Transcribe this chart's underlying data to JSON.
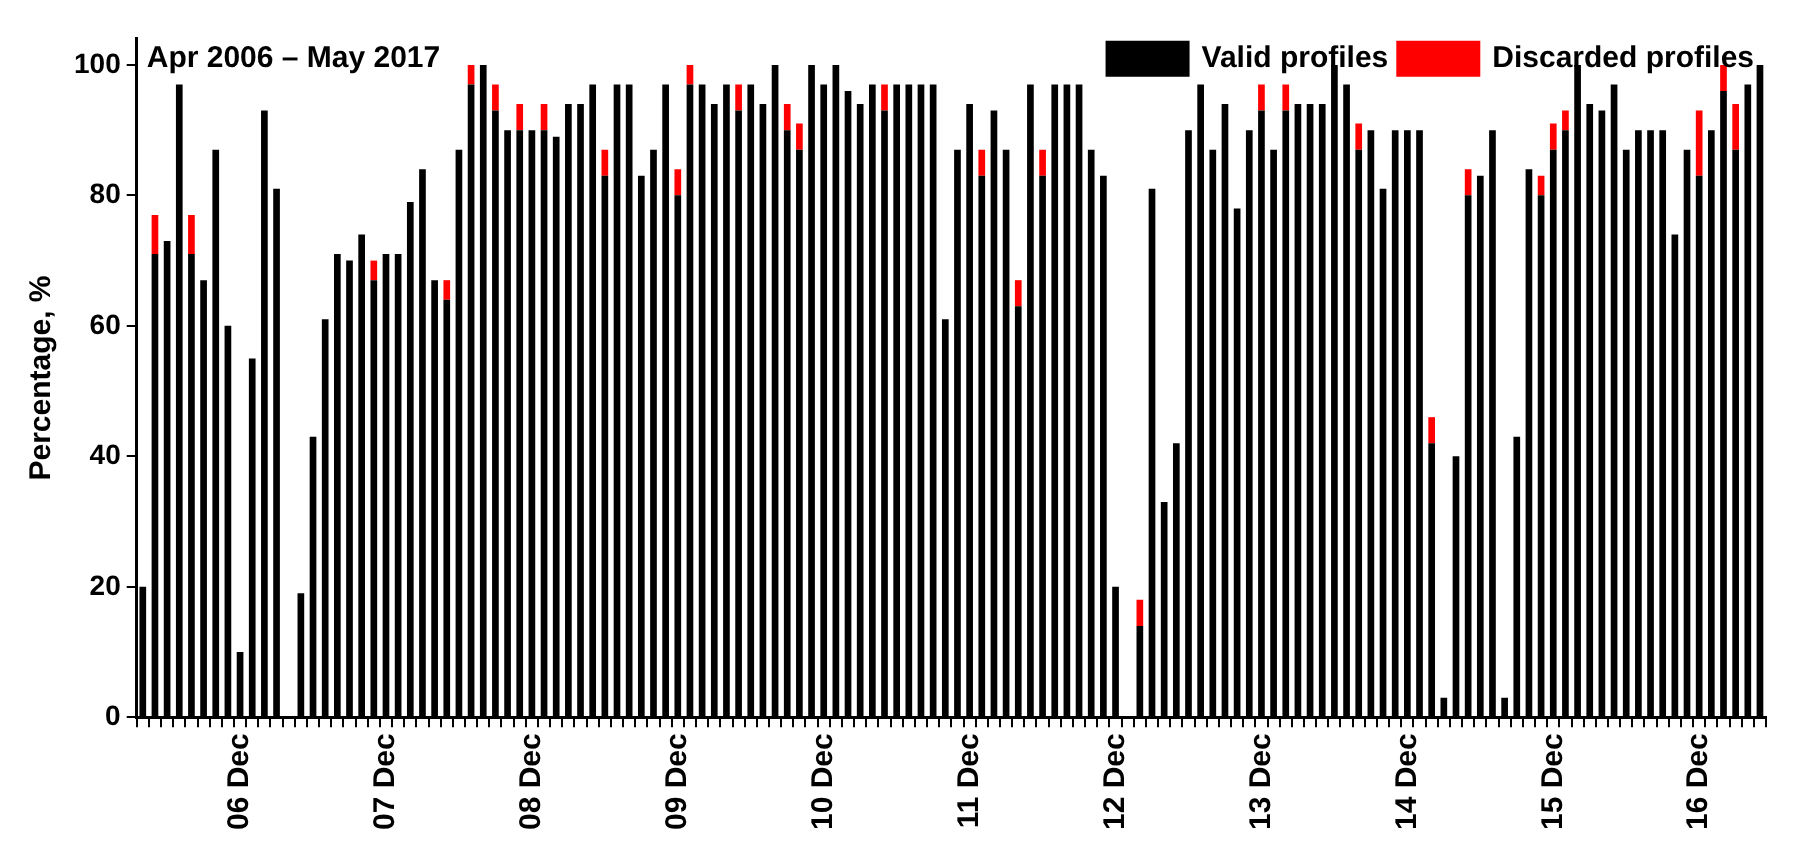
{
  "chart_data": {
    "type": "bar",
    "title": "Apr 2006 – May 2017",
    "ylabel": "Percentage, %",
    "stacked": true,
    "legend": "top right",
    "grid": false,
    "categories": [
      null,
      null,
      null,
      null,
      null,
      null,
      null,
      null,
      "06 Dec",
      null,
      null,
      null,
      null,
      null,
      null,
      null,
      null,
      null,
      null,
      null,
      "07 Dec",
      null,
      null,
      null,
      null,
      null,
      null,
      null,
      null,
      null,
      null,
      null,
      "08 Dec",
      null,
      null,
      null,
      null,
      null,
      null,
      null,
      null,
      null,
      null,
      null,
      "09 Dec",
      null,
      null,
      null,
      null,
      null,
      null,
      null,
      null,
      null,
      null,
      null,
      "10 Dec",
      null,
      null,
      null,
      null,
      null,
      null,
      null,
      null,
      null,
      null,
      null,
      "11 Dec",
      null,
      null,
      null,
      null,
      null,
      null,
      null,
      null,
      null,
      null,
      null,
      "12 Dec",
      null,
      null,
      null,
      null,
      null,
      null,
      null,
      null,
      null,
      null,
      null,
      "13 Dec",
      null,
      null,
      null,
      null,
      null,
      null,
      null,
      null,
      null,
      null,
      null,
      "14 Dec",
      null,
      null,
      null,
      null,
      null,
      null,
      null,
      null,
      null,
      null,
      null,
      "15 Dec",
      null,
      null,
      null,
      null,
      null,
      null,
      null,
      null,
      null,
      null,
      null,
      "16 Dec",
      null,
      null,
      null,
      null,
      null
    ],
    "series": [
      {
        "name": "Valid profiles",
        "color": "#000000",
        "values": [
          20,
          71,
          73,
          97,
          71,
          67,
          87,
          60,
          10,
          55,
          93,
          81,
          null,
          19,
          43,
          61,
          71,
          70,
          74,
          67,
          71,
          71,
          79,
          84,
          67,
          64,
          87,
          97,
          100,
          93,
          90,
          90,
          90,
          90,
          89,
          94,
          94,
          97,
          83,
          97,
          97,
          83,
          87,
          97,
          80,
          97,
          97,
          94,
          97,
          93,
          97,
          94,
          100,
          90,
          87,
          100,
          97,
          100,
          96,
          94,
          97,
          93,
          97,
          97,
          97,
          97,
          61,
          87,
          94,
          83,
          93,
          87,
          63,
          97,
          83,
          97,
          97,
          97,
          87,
          83,
          20,
          null,
          14,
          81,
          33,
          42,
          90,
          97,
          87,
          94,
          78,
          90,
          93,
          87,
          93,
          94,
          94,
          94,
          100,
          97,
          87,
          90,
          81,
          90,
          90,
          90,
          42,
          3,
          40,
          80,
          83,
          90,
          3,
          43,
          84,
          80,
          87,
          90,
          100,
          94,
          93,
          97,
          87,
          90,
          90,
          90,
          74,
          87,
          83,
          90,
          96,
          87,
          97,
          100
        ]
      },
      {
        "name": "Discarded profiles",
        "color": "#ff0000",
        "values": [
          null,
          6,
          null,
          null,
          6,
          null,
          null,
          null,
          null,
          null,
          null,
          null,
          null,
          null,
          null,
          null,
          null,
          null,
          null,
          3,
          null,
          null,
          null,
          null,
          null,
          3,
          null,
          3,
          null,
          4,
          null,
          4,
          null,
          4,
          null,
          null,
          null,
          null,
          4,
          null,
          null,
          null,
          null,
          null,
          4,
          3,
          null,
          null,
          null,
          4,
          null,
          null,
          null,
          4,
          4,
          null,
          null,
          null,
          null,
          null,
          null,
          4,
          null,
          null,
          null,
          null,
          null,
          null,
          null,
          4,
          null,
          null,
          4,
          null,
          4,
          null,
          null,
          null,
          null,
          null,
          null,
          null,
          4,
          null,
          null,
          null,
          null,
          null,
          null,
          null,
          null,
          null,
          4,
          null,
          4,
          null,
          null,
          null,
          null,
          null,
          4,
          null,
          null,
          null,
          null,
          null,
          4,
          null,
          null,
          4,
          null,
          null,
          null,
          null,
          null,
          3,
          4,
          3,
          null,
          null,
          null,
          null,
          null,
          null,
          null,
          null,
          null,
          null,
          10,
          null,
          4,
          7,
          null,
          null
        ]
      }
    ],
    "ylim": [
      0,
      104
    ],
    "yticks": [
      0,
      20,
      40,
      60,
      80,
      100
    ]
  }
}
